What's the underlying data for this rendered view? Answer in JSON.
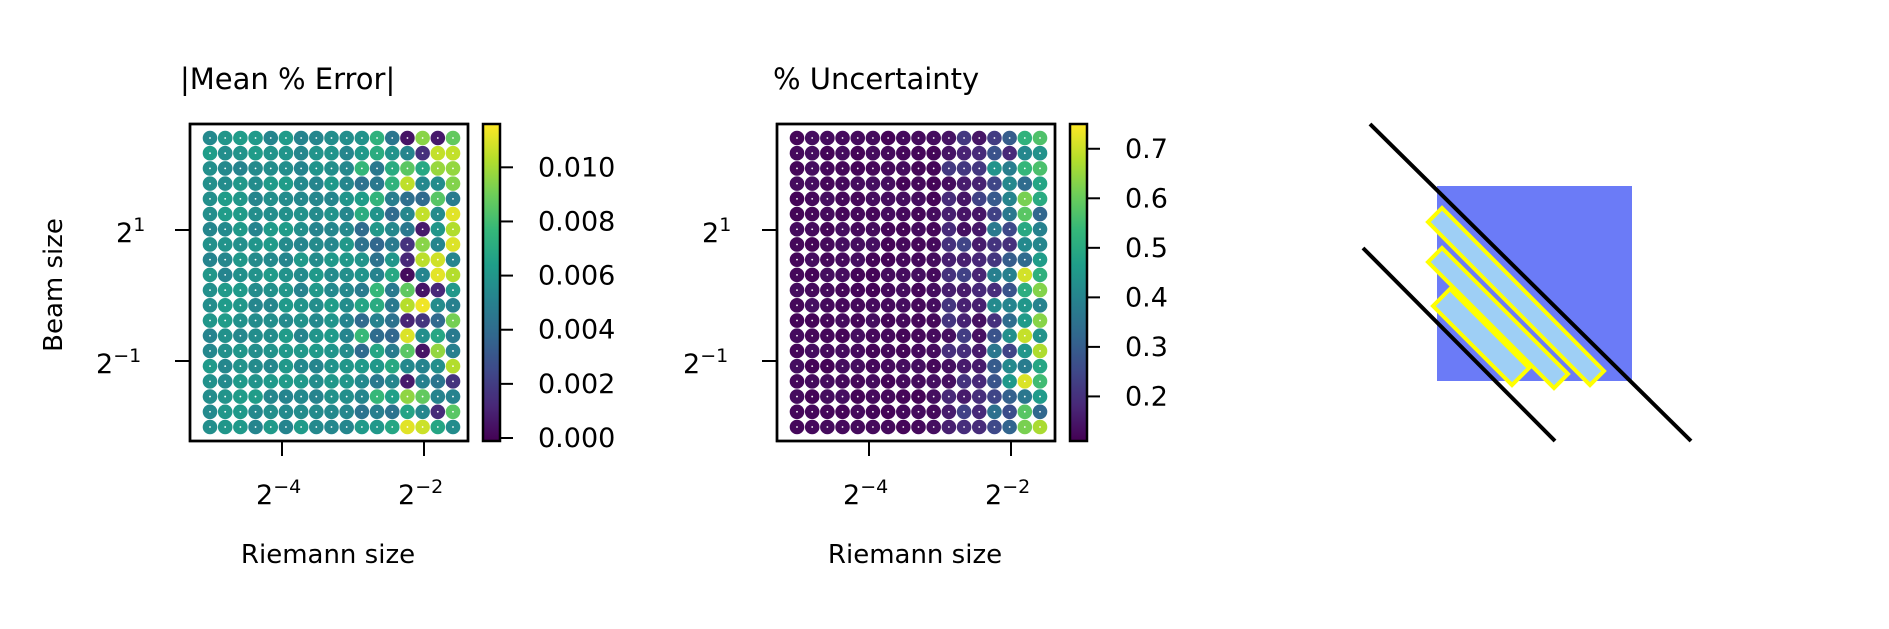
{
  "chart_data": [
    {
      "type": "heatmap",
      "title": "|Mean % Error|",
      "xlabel": "Riemann size",
      "ylabel": "Beam size",
      "xscale": "log2",
      "yscale": "log2",
      "x_ticks": [
        {
          "base": "2",
          "exp": "−4"
        },
        {
          "base": "2",
          "exp": "−2"
        }
      ],
      "y_ticks": [
        {
          "base": "2",
          "exp": "1"
        },
        {
          "base": "2",
          "exp": "−1"
        }
      ],
      "colormap": "viridis",
      "colorbar": {
        "min": 0.0,
        "max": 0.0116,
        "ticks": [
          "0.000",
          "0.002",
          "0.004",
          "0.006",
          "0.008",
          "0.010"
        ]
      },
      "grid": {
        "cols": 17,
        "rows": 20,
        "x_range_log2": [
          -5.3,
          -1.7
        ],
        "y_range_log2": [
          -2.1,
          2.6
        ]
      },
      "values_note": "Per-cell values are mostly ~0.005-0.007 (teal); the rightmost columns mix near-zero (purple) and high (yellow, up to ~0.0116) values."
    },
    {
      "type": "heatmap",
      "title": "% Uncertainty",
      "xlabel": "Riemann size",
      "ylabel": "",
      "xscale": "log2",
      "yscale": "log2",
      "x_ticks": [
        {
          "base": "2",
          "exp": "−4"
        },
        {
          "base": "2",
          "exp": "−2"
        }
      ],
      "y_ticks": [
        {
          "base": "2",
          "exp": "1"
        },
        {
          "base": "2",
          "exp": "−1"
        }
      ],
      "colormap": "viridis",
      "colorbar": {
        "min": 0.11,
        "max": 0.75,
        "ticks": [
          "0.2",
          "0.3",
          "0.4",
          "0.5",
          "0.6",
          "0.7"
        ]
      },
      "grid": {
        "cols": 17,
        "rows": 20,
        "x_range_log2": [
          -5.3,
          -1.7
        ],
        "y_range_log2": [
          -2.1,
          2.6
        ]
      },
      "values_note": "Near 0.12 (dark purple) for small Riemann sizes, rising to ~0.4-0.75 in the rightmost columns."
    }
  ],
  "diagram": {
    "square_color": "#6b7bf7",
    "strip_fill": "#9ecff5",
    "strip_stroke": "#ffff00",
    "line_color": "#000000"
  },
  "colors": {
    "viridis": [
      "#440154",
      "#482878",
      "#3e4989",
      "#31688e",
      "#26828e",
      "#1f9e89",
      "#35b779",
      "#6ece58",
      "#b5de2b",
      "#fde725"
    ]
  }
}
